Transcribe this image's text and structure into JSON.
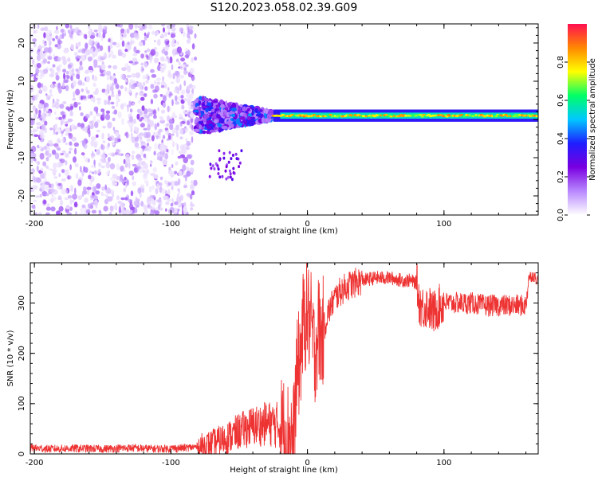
{
  "figure": {
    "title": "S120.2023.058.02.39.G09"
  },
  "chart_data": [
    {
      "type": "heatmap",
      "name": "spectrogram",
      "xlabel": "Height of straight line (km)",
      "ylabel": "Frequency (Hz)",
      "xlim": [
        -203,
        169
      ],
      "ylim": [
        -25,
        25
      ],
      "xticks": [
        -200,
        -100,
        0,
        100
      ],
      "yticks": [
        -20,
        -10,
        0,
        10,
        20
      ],
      "colorbar": {
        "label": "Normalized spectral amplitude",
        "range": [
          0,
          1
        ],
        "ticks": [
          0.0,
          0.2,
          0.4,
          0.6,
          0.8
        ],
        "colormap": [
          "#ffffff",
          "#b888ff",
          "#7a00e0",
          "#1e1eff",
          "#00c8ff",
          "#00ff66",
          "#ffff00",
          "#ff8800",
          "#ff1050"
        ]
      },
      "regions": [
        {
          "x_range": [
            -203,
            -82
          ],
          "freq_range": [
            -25,
            25
          ],
          "amplitude": 0.1,
          "pattern": "noise"
        },
        {
          "x_range": [
            -82,
            -25
          ],
          "freq_range": [
            -5,
            5
          ],
          "amplitude": 0.25,
          "pattern": "scattered"
        },
        {
          "x_range": [
            -25,
            169
          ],
          "freq_range": [
            0,
            2
          ],
          "amplitude": 0.85,
          "pattern": "line"
        }
      ]
    },
    {
      "type": "line",
      "name": "snr",
      "xlabel": "Height of straight line (km)",
      "ylabel": "SNR (10 * v/v)",
      "xlim": [
        -203,
        169
      ],
      "ylim": [
        0,
        380
      ],
      "xticks": [
        -200,
        -100,
        0,
        100
      ],
      "yticks": [
        0,
        100,
        200,
        300
      ],
      "color": "#ee3333",
      "series": [
        {
          "x": [
            -203,
            -190,
            -170,
            -150,
            -130,
            -110,
            -90,
            -80,
            -70,
            -60,
            -50,
            -40,
            -30,
            -25,
            -20,
            -15,
            -10,
            -8,
            -5,
            -3,
            0,
            3,
            5,
            8,
            10,
            15,
            20,
            25,
            30,
            35,
            40,
            50,
            60,
            70,
            75,
            80,
            82,
            85,
            88,
            92,
            95,
            100,
            110,
            120,
            130,
            140,
            150,
            160,
            162,
            165,
            169
          ],
          "y": [
            12,
            10,
            11,
            10,
            12,
            10,
            12,
            14,
            20,
            30,
            45,
            55,
            60,
            60,
            55,
            40,
            35,
            150,
            200,
            260,
            280,
            250,
            200,
            250,
            230,
            280,
            310,
            325,
            335,
            340,
            345,
            350,
            350,
            345,
            345,
            340,
            300,
            290,
            295,
            280,
            290,
            300,
            300,
            300,
            295,
            295,
            295,
            295,
            350,
            355,
            345
          ]
        }
      ]
    }
  ]
}
